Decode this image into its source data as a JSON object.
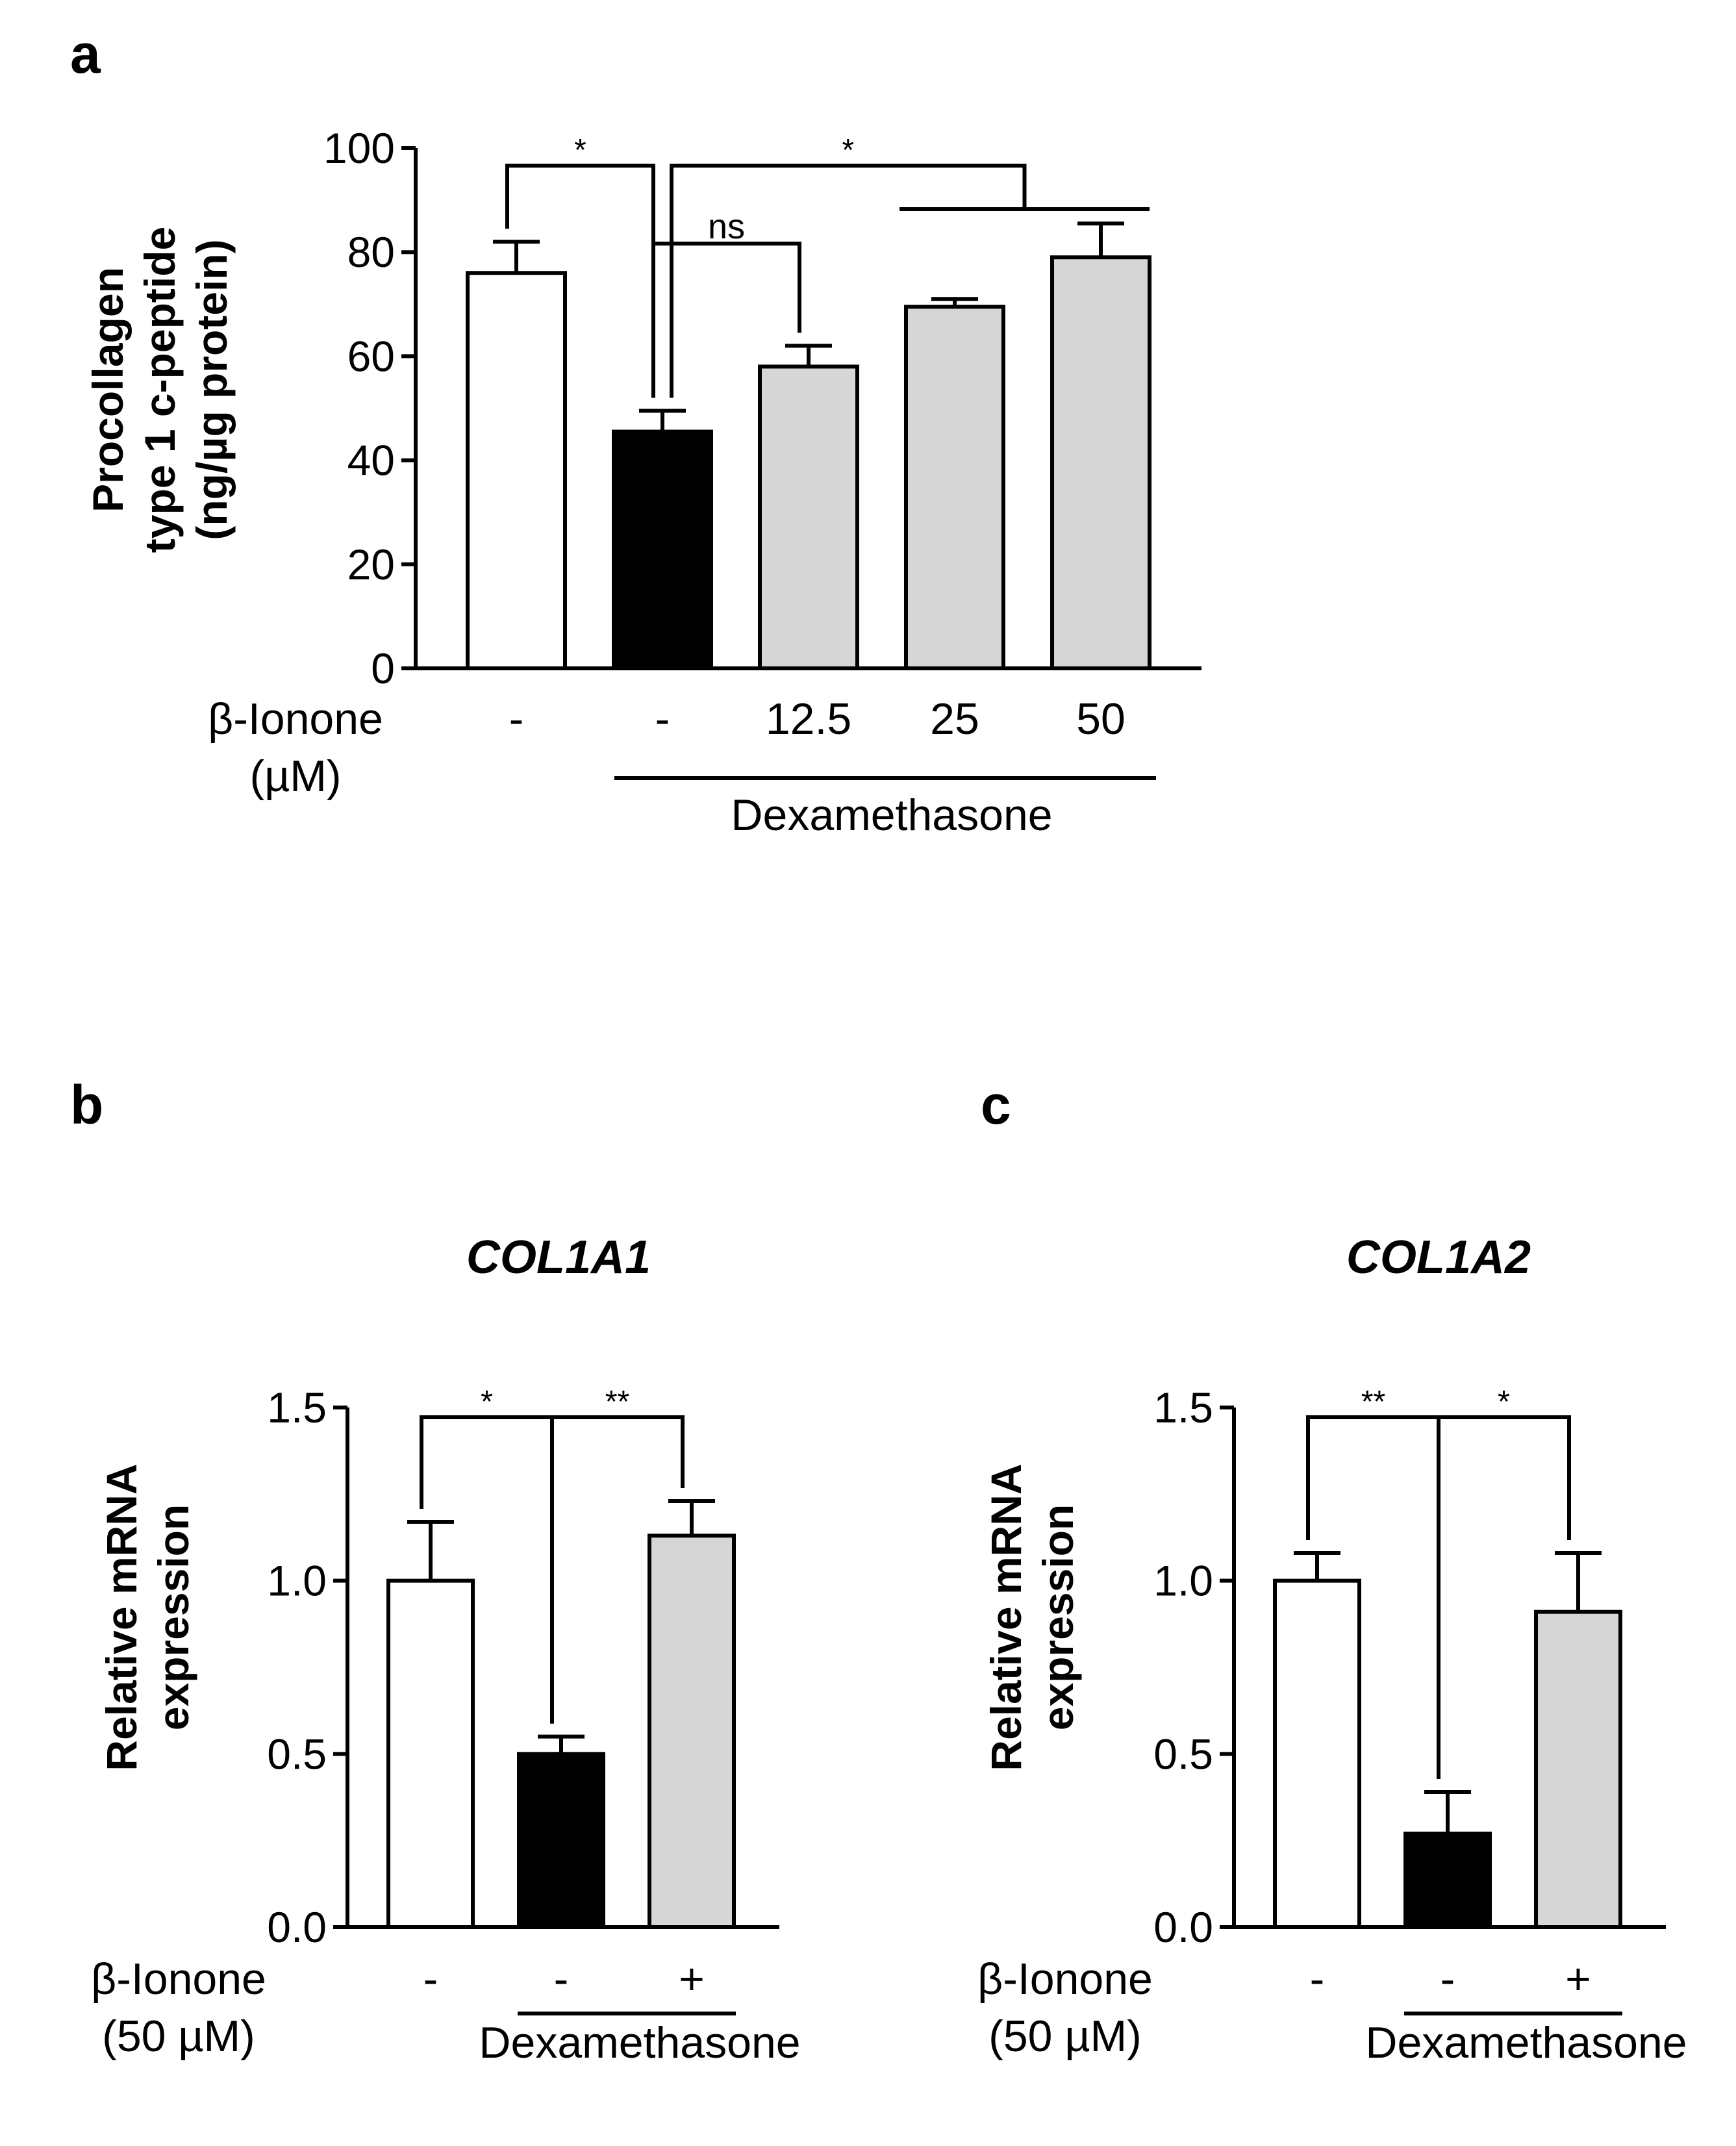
{
  "colors": {
    "control": "#ffffff",
    "dexamethasone": "#000000",
    "treated": "#d6d6d6",
    "stroke": "#000000"
  },
  "chart_data": [
    {
      "panel": "a",
      "type": "bar",
      "title": "",
      "ylabel": [
        "Procollagen",
        "type 1 c-peptide",
        "(ng/µg protein)"
      ],
      "xlabel": "",
      "ylim": [
        0,
        100
      ],
      "yticks": [
        0,
        20,
        40,
        60,
        80,
        100
      ],
      "ytick_labels": [
        "0",
        "20",
        "40",
        "60",
        "80",
        "100"
      ],
      "row_label": [
        "β-Ionone",
        "(µM)"
      ],
      "categories": [
        "-",
        "-",
        "12.5",
        "25",
        "50"
      ],
      "values": [
        76,
        45.5,
        58,
        69.5,
        79
      ],
      "errors": [
        6,
        4,
        4,
        1.5,
        6.5
      ],
      "fills": [
        "control",
        "dexamethasone",
        "treated",
        "treated",
        "treated"
      ],
      "group_label": "Dexamethasone",
      "group_span": [
        1,
        4
      ],
      "significance": [
        {
          "label": "*",
          "from": 0,
          "to": 1
        },
        {
          "label": "ns",
          "from": 1,
          "to": 2
        },
        {
          "label": "*",
          "from": 1,
          "to": [
            3,
            4
          ]
        }
      ]
    },
    {
      "panel": "b",
      "type": "bar",
      "title": "COL1A1",
      "ylabel": [
        "Relative mRNA",
        "expression"
      ],
      "xlabel": "",
      "ylim": [
        0,
        1.5
      ],
      "yticks": [
        0,
        0.5,
        1.0,
        1.5
      ],
      "ytick_labels": [
        "0.0",
        "0.5",
        "1.0",
        "1.5"
      ],
      "row_label": [
        "β-Ionone",
        "(50 µM)"
      ],
      "categories": [
        "-",
        "-",
        "+"
      ],
      "values": [
        1.0,
        0.5,
        1.13
      ],
      "errors": [
        0.17,
        0.05,
        0.1
      ],
      "fills": [
        "control",
        "dexamethasone",
        "treated"
      ],
      "group_label": "Dexamethasone",
      "group_span": [
        1,
        2
      ],
      "significance": [
        {
          "label": "*",
          "from": 0,
          "to": 1
        },
        {
          "label": "**",
          "from": 1,
          "to": 2
        }
      ]
    },
    {
      "panel": "c",
      "type": "bar",
      "title": "COL1A2",
      "ylabel": [
        "Relative mRNA",
        "expression"
      ],
      "xlabel": "",
      "ylim": [
        0,
        1.5
      ],
      "yticks": [
        0,
        0.5,
        1.0,
        1.5
      ],
      "ytick_labels": [
        "0.0",
        "0.5",
        "1.0",
        "1.5"
      ],
      "row_label": [
        "β-Ionone",
        "(50 µM)"
      ],
      "categories": [
        "-",
        "-",
        "+"
      ],
      "values": [
        1.0,
        0.27,
        0.91
      ],
      "errors": [
        0.08,
        0.12,
        0.17
      ],
      "fills": [
        "control",
        "dexamethasone",
        "treated"
      ],
      "group_label": "Dexamethasone",
      "group_span": [
        1,
        2
      ],
      "significance": [
        {
          "label": "**",
          "from": 0,
          "to": 1
        },
        {
          "label": "*",
          "from": 1,
          "to": 2
        }
      ]
    }
  ]
}
